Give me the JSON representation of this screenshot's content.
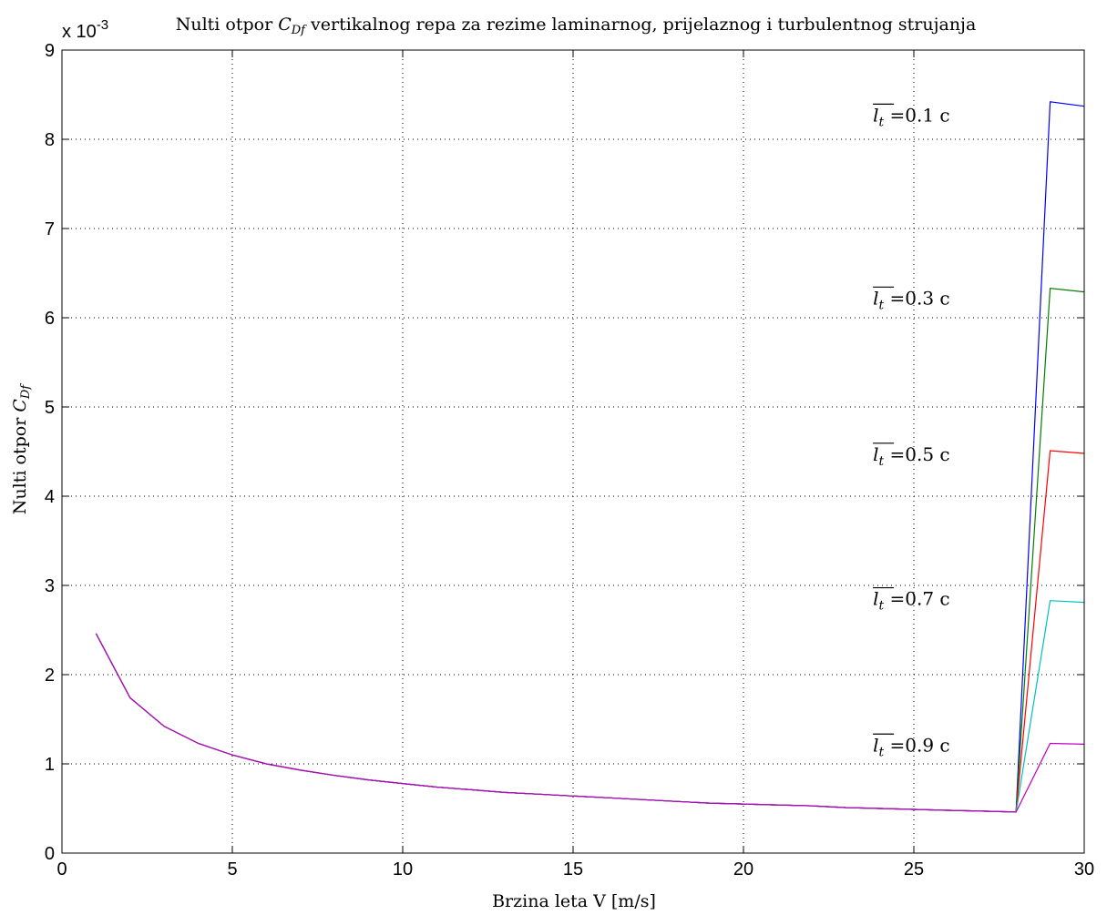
{
  "chart_data": {
    "type": "line",
    "title": "Nulti otpor C_Df vertikalnog repa za rezime laminarnog, prijelaznog i turbulentnog strujanja",
    "title_parts": {
      "pre": "Nulti otpor ",
      "sym": "C",
      "sub": "Df",
      "post": " vertikalnog repa za rezime laminarnog, prijelaznog i turbulentnog strujanja"
    },
    "xlabel": "Brzina leta V [m/s]",
    "ylabel": "Nulti otpor C_Df",
    "ylabel_parts": {
      "pre": "Nulti otpor ",
      "sym": "C",
      "sub": "Df"
    },
    "xlim": [
      0,
      30
    ],
    "ylim": [
      0,
      9
    ],
    "y_scale_label": "x 10",
    "y_scale_exponent": "-3",
    "y_multiplier": 0.001,
    "xticks": [
      0,
      5,
      10,
      15,
      20,
      25,
      30
    ],
    "yticks": [
      0,
      1,
      2,
      3,
      4,
      5,
      6,
      7,
      8,
      9
    ],
    "grid": true,
    "x": [
      1,
      2,
      3,
      4,
      5,
      6,
      7,
      8,
      9,
      10,
      11,
      12,
      13,
      14,
      15,
      16,
      17,
      18,
      19,
      20,
      21,
      22,
      23,
      24,
      25,
      26,
      27,
      28,
      29,
      30
    ],
    "series": [
      {
        "color": "#0000ff",
        "values": [
          2.46,
          1.74,
          1.42,
          1.23,
          1.1,
          1.0,
          0.93,
          0.87,
          0.82,
          0.78,
          0.74,
          0.71,
          0.68,
          0.66,
          0.64,
          0.62,
          0.6,
          0.58,
          0.56,
          0.55,
          0.54,
          0.53,
          0.51,
          0.5,
          0.49,
          0.48,
          0.47,
          0.46,
          8.42,
          8.37
        ]
      },
      {
        "color": "#007f00",
        "values": [
          2.46,
          1.74,
          1.42,
          1.23,
          1.1,
          1.0,
          0.93,
          0.87,
          0.82,
          0.78,
          0.74,
          0.71,
          0.68,
          0.66,
          0.64,
          0.62,
          0.6,
          0.58,
          0.56,
          0.55,
          0.54,
          0.53,
          0.51,
          0.5,
          0.49,
          0.48,
          0.47,
          0.46,
          6.33,
          6.29
        ]
      },
      {
        "color": "#ff0000",
        "values": [
          2.46,
          1.74,
          1.42,
          1.23,
          1.1,
          1.0,
          0.93,
          0.87,
          0.82,
          0.78,
          0.74,
          0.71,
          0.68,
          0.66,
          0.64,
          0.62,
          0.6,
          0.58,
          0.56,
          0.55,
          0.54,
          0.53,
          0.51,
          0.5,
          0.49,
          0.48,
          0.47,
          0.46,
          4.51,
          4.48
        ]
      },
      {
        "color": "#00bfbf",
        "values": [
          2.46,
          1.74,
          1.42,
          1.23,
          1.1,
          1.0,
          0.93,
          0.87,
          0.82,
          0.78,
          0.74,
          0.71,
          0.68,
          0.66,
          0.64,
          0.62,
          0.6,
          0.58,
          0.56,
          0.55,
          0.54,
          0.53,
          0.51,
          0.5,
          0.49,
          0.48,
          0.47,
          0.46,
          2.83,
          2.81
        ]
      },
      {
        "color": "#bf00bf",
        "values": [
          2.46,
          1.74,
          1.42,
          1.23,
          1.1,
          1.0,
          0.93,
          0.87,
          0.82,
          0.78,
          0.74,
          0.71,
          0.68,
          0.66,
          0.64,
          0.62,
          0.6,
          0.58,
          0.56,
          0.55,
          0.54,
          0.53,
          0.51,
          0.5,
          0.49,
          0.48,
          0.47,
          0.46,
          1.23,
          1.22
        ]
      }
    ],
    "annotations": [
      {
        "sym": "l",
        "sub": "t",
        "text": " =0.1 c",
        "x": 23.8,
        "y": 8.2
      },
      {
        "sym": "l",
        "sub": "t",
        "text": " =0.3 c",
        "x": 23.8,
        "y": 6.15
      },
      {
        "sym": "l",
        "sub": "t",
        "text": " =0.5 c",
        "x": 23.8,
        "y": 4.4
      },
      {
        "sym": "l",
        "sub": "t",
        "text": " =0.7 c",
        "x": 23.8,
        "y": 2.78
      },
      {
        "sym": "l",
        "sub": "t",
        "text": " =0.9 c",
        "x": 23.8,
        "y": 1.14
      }
    ]
  }
}
